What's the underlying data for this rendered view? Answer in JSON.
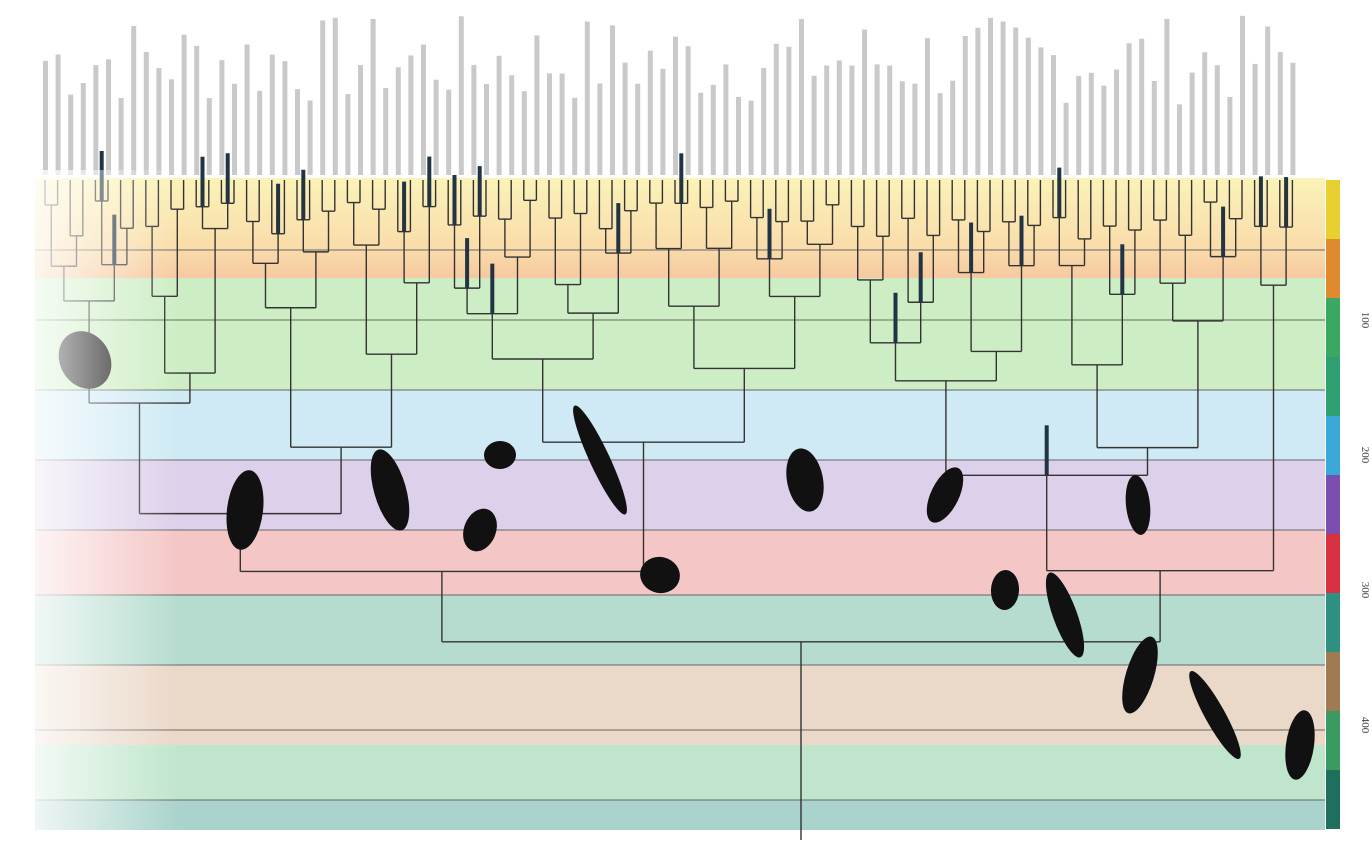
{
  "time_axis": {
    "labels": [
      "100",
      "200",
      "300",
      "400"
    ]
  }
}
